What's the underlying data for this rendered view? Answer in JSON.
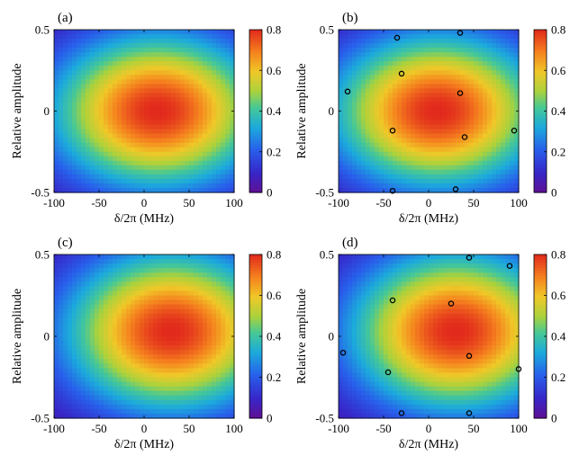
{
  "chart_data": [
    {
      "type": "heatmap",
      "panel_label": "(a)",
      "xlabel": "δ/2π (MHz)",
      "ylabel": "Relative amplitude",
      "xlim": [
        -100,
        100
      ],
      "ylim": [
        -0.5,
        0.5
      ],
      "x_ticks": [
        "-100",
        "-50",
        "0",
        "50",
        "100"
      ],
      "y_ticks": [
        "-0.5",
        "0",
        "0.5"
      ],
      "x_tick_values": [
        -100,
        -50,
        0,
        50,
        100
      ],
      "y_tick_values": [
        -0.5,
        0,
        0.5
      ],
      "colorbar": {
        "ticks": [
          "0",
          "0.2",
          "0.4",
          "0.6",
          "0.8"
        ],
        "tick_values": [
          0,
          0.2,
          0.4,
          0.6,
          0.8
        ],
        "range": [
          0,
          0.8
        ]
      },
      "peak": {
        "center_x": 15,
        "center_y": 0,
        "max": 0.8,
        "width_x": 150,
        "width_y": 0.6
      },
      "grid": false,
      "points": []
    },
    {
      "type": "heatmap",
      "panel_label": "(b)",
      "xlabel": "δ/2π (MHz)",
      "ylabel": "Relative amplitude",
      "xlim": [
        -100,
        100
      ],
      "ylim": [
        -0.5,
        0.5
      ],
      "x_ticks": [
        "-100",
        "-50",
        "0",
        "50",
        "100"
      ],
      "y_ticks": [
        "-0.5",
        "0",
        "0.5"
      ],
      "x_tick_values": [
        -100,
        -50,
        0,
        50,
        100
      ],
      "y_tick_values": [
        -0.5,
        0,
        0.5
      ],
      "colorbar": {
        "ticks": [
          "0",
          "0.2",
          "0.4",
          "0.6",
          "0.8"
        ],
        "tick_values": [
          0,
          0.2,
          0.4,
          0.6,
          0.8
        ],
        "range": [
          0,
          0.8
        ]
      },
      "peak": {
        "center_x": 10,
        "center_y": 0,
        "max": 0.8,
        "width_x": 150,
        "width_y": 0.6
      },
      "grid": false,
      "points": [
        {
          "x": -35,
          "y": 0.45
        },
        {
          "x": 35,
          "y": 0.48
        },
        {
          "x": -30,
          "y": 0.23
        },
        {
          "x": -90,
          "y": 0.12
        },
        {
          "x": 35,
          "y": 0.11
        },
        {
          "x": -40,
          "y": -0.12
        },
        {
          "x": 40,
          "y": -0.16
        },
        {
          "x": 95,
          "y": -0.12
        },
        {
          "x": -40,
          "y": -0.49
        },
        {
          "x": 30,
          "y": -0.48
        }
      ]
    },
    {
      "type": "heatmap",
      "panel_label": "(c)",
      "xlabel": "δ/2π (MHz)",
      "ylabel": "Relative amplitude",
      "xlim": [
        -100,
        100
      ],
      "ylim": [
        -0.5,
        0.5
      ],
      "x_ticks": [
        "-100",
        "-50",
        "0",
        "50",
        "100"
      ],
      "y_ticks": [
        "-0.5",
        "0",
        "0.5"
      ],
      "x_tick_values": [
        -100,
        -50,
        0,
        50,
        100
      ],
      "y_tick_values": [
        -0.5,
        0,
        0.5
      ],
      "colorbar": {
        "ticks": [
          "0",
          "0.2",
          "0.4",
          "0.6",
          "0.8"
        ],
        "tick_values": [
          0,
          0.2,
          0.4,
          0.6,
          0.8
        ],
        "range": [
          0,
          0.8
        ]
      },
      "peak": {
        "center_x": 30,
        "center_y": 0.03,
        "max": 0.8,
        "width_x": 150,
        "width_y": 0.62
      },
      "grid": false,
      "points": []
    },
    {
      "type": "heatmap",
      "panel_label": "(d)",
      "xlabel": "δ/2π (MHz)",
      "ylabel": "Relative amplitude",
      "xlim": [
        -100,
        100
      ],
      "ylim": [
        -0.5,
        0.5
      ],
      "x_ticks": [
        "-100",
        "-50",
        "0",
        "50",
        "100"
      ],
      "y_ticks": [
        "-0.5",
        "0",
        "0.5"
      ],
      "x_tick_values": [
        -100,
        -50,
        0,
        50,
        100
      ],
      "y_tick_values": [
        -0.5,
        0,
        0.5
      ],
      "colorbar": {
        "ticks": [
          "0",
          "0.2",
          "0.4",
          "0.6",
          "0.8"
        ],
        "tick_values": [
          0,
          0.2,
          0.4,
          0.6,
          0.8
        ],
        "range": [
          0,
          0.8
        ]
      },
      "peak": {
        "center_x": 30,
        "center_y": 0.03,
        "max": 0.8,
        "width_x": 150,
        "width_y": 0.62
      },
      "grid": false,
      "points": [
        {
          "x": 45,
          "y": 0.48
        },
        {
          "x": 90,
          "y": 0.43
        },
        {
          "x": -40,
          "y": 0.22
        },
        {
          "x": 25,
          "y": 0.2
        },
        {
          "x": -95,
          "y": -0.1
        },
        {
          "x": 45,
          "y": -0.12
        },
        {
          "x": -45,
          "y": -0.22
        },
        {
          "x": 100,
          "y": -0.2
        },
        {
          "x": -30,
          "y": -0.47
        },
        {
          "x": 45,
          "y": -0.47
        }
      ]
    }
  ]
}
